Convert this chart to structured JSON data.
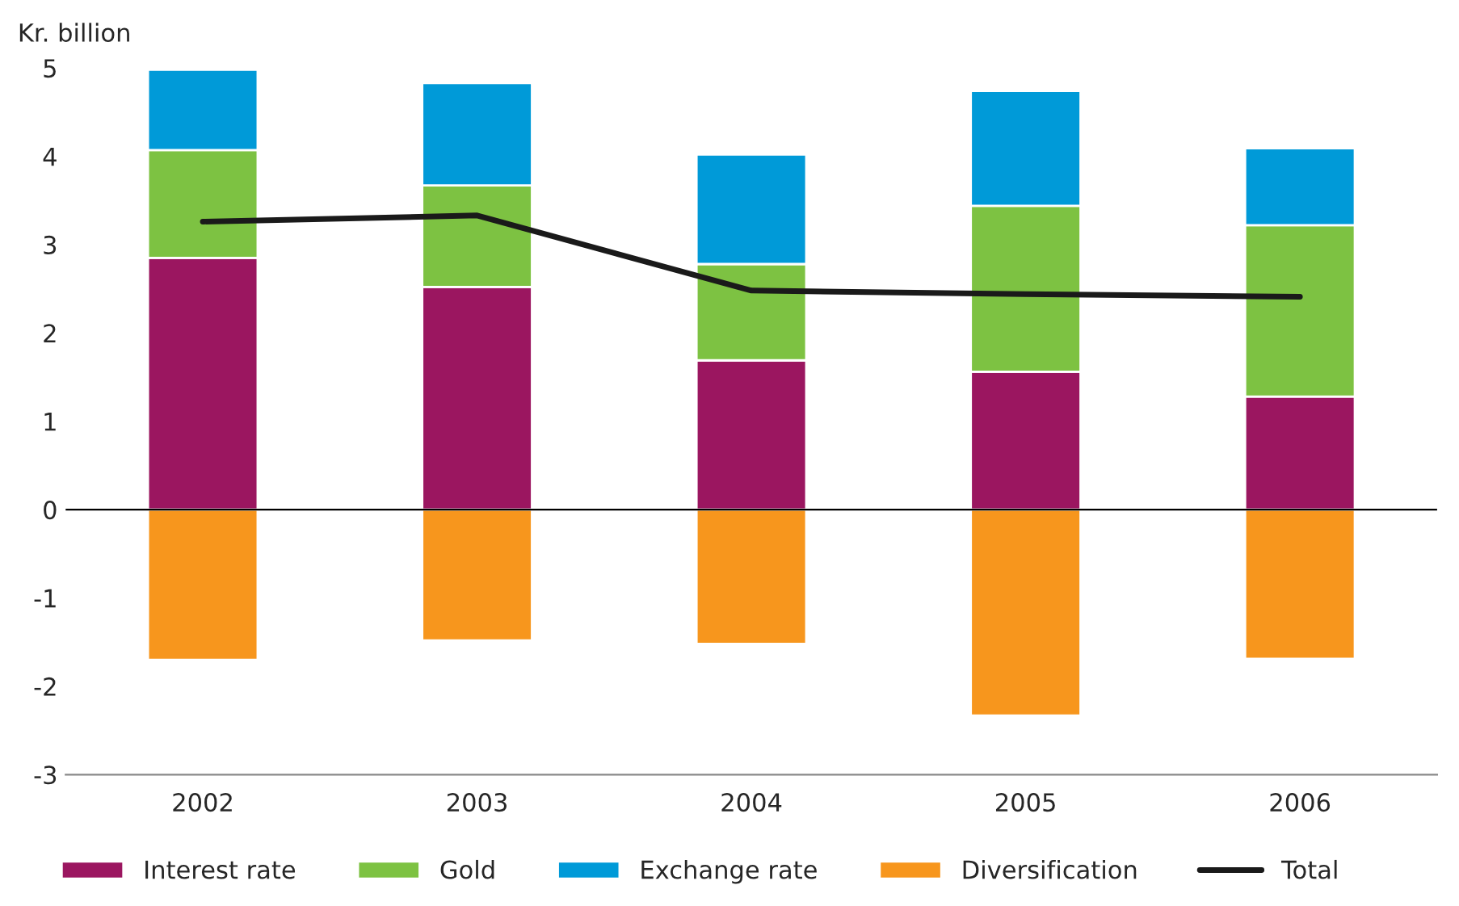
{
  "chart_data": {
    "type": "bar",
    "stacked": true,
    "ylabel": "Kr. billion",
    "categories": [
      "2002",
      "2003",
      "2004",
      "2005",
      "2006"
    ],
    "series": [
      {
        "name": "Interest rate",
        "color": "#9b1660",
        "values": [
          2.85,
          2.52,
          1.69,
          1.56,
          1.28
        ]
      },
      {
        "name": "Gold",
        "color": "#7dc242",
        "values": [
          1.22,
          1.15,
          1.09,
          1.88,
          1.94
        ]
      },
      {
        "name": "Exchange rate",
        "color": "#009ad8",
        "values": [
          0.91,
          1.16,
          1.24,
          1.3,
          0.87
        ]
      },
      {
        "name": "Diversification",
        "color": "#f7961d",
        "values": [
          -1.7,
          -1.48,
          -1.52,
          -2.33,
          -1.69
        ]
      },
      {
        "name": "Total",
        "type": "line",
        "color": "#1a1a1a",
        "values": [
          3.26,
          3.33,
          2.48,
          2.44,
          2.41
        ]
      }
    ],
    "ylim": [
      -3,
      5
    ],
    "yticks": [
      -3,
      -2,
      -1,
      0,
      1,
      2,
      3,
      4,
      5
    ],
    "ref_lines": [
      {
        "axis": "y",
        "value": 0,
        "color": "#000000"
      }
    ],
    "grid": false,
    "legend": "bottom",
    "marker": "none",
    "line_style": "solid"
  }
}
